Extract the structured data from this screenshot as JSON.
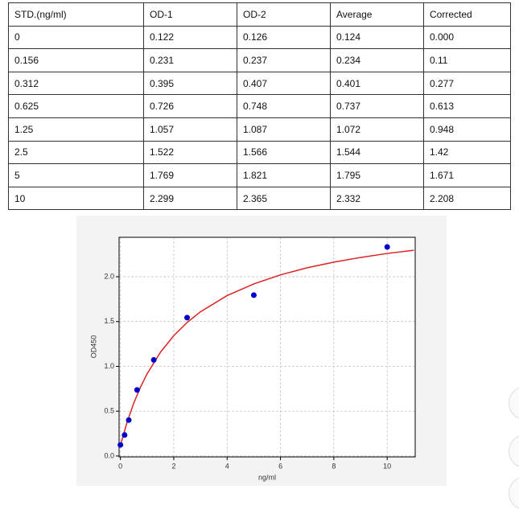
{
  "table": {
    "header": [
      "STD.(ng/ml)",
      "OD-1",
      "OD-2",
      "Average",
      "Corrected"
    ],
    "rows": [
      [
        "0",
        "0.122",
        "0.126",
        "0.124",
        "0.000"
      ],
      [
        "0.156",
        "0.231",
        "0.237",
        "0.234",
        "0.11"
      ],
      [
        "0.312",
        "0.395",
        "0.407",
        "0.401",
        "0.277"
      ],
      [
        "0.625",
        "0.726",
        "0.748",
        "0.737",
        "0.613"
      ],
      [
        "1.25",
        "1.057",
        "1.087",
        "1.072",
        "0.948"
      ],
      [
        "2.5",
        "1.522",
        "1.566",
        "1.544",
        "1.42"
      ],
      [
        "5",
        "1.769",
        "1.821",
        "1.795",
        "1.671"
      ],
      [
        "10",
        "2.299",
        "2.365",
        "2.332",
        "2.208"
      ]
    ]
  },
  "chart_data": {
    "type": "scatter",
    "xlabel": "ng/ml",
    "ylabel": "OD450",
    "x": [
      0,
      0.156,
      0.312,
      0.625,
      1.25,
      2.5,
      5,
      10
    ],
    "values": [
      0.124,
      0.234,
      0.401,
      0.737,
      1.072,
      1.544,
      1.795,
      2.332
    ],
    "color": "#0000cc",
    "fit": {
      "color": "#dd2222",
      "x": [
        0,
        0.25,
        0.5,
        0.75,
        1,
        1.5,
        2,
        2.5,
        3,
        4,
        5,
        6,
        7,
        8,
        9,
        10,
        11
      ],
      "values": [
        0.12,
        0.378,
        0.59,
        0.767,
        0.917,
        1.158,
        1.343,
        1.49,
        1.609,
        1.79,
        1.92,
        2.021,
        2.1,
        2.163,
        2.215,
        2.26,
        2.295
      ]
    },
    "xlim": [
      -0.05,
      11.05
    ],
    "ylim": [
      -0.01,
      2.44
    ],
    "xticks": [
      0,
      2,
      4,
      6,
      8,
      10
    ],
    "yticks": [
      {
        "value": 0,
        "label": "0.0"
      },
      0.5,
      {
        "value": 1,
        "label": "1.0"
      },
      1.5,
      {
        "value": 2,
        "label": "2.0"
      }
    ],
    "grid": true
  }
}
